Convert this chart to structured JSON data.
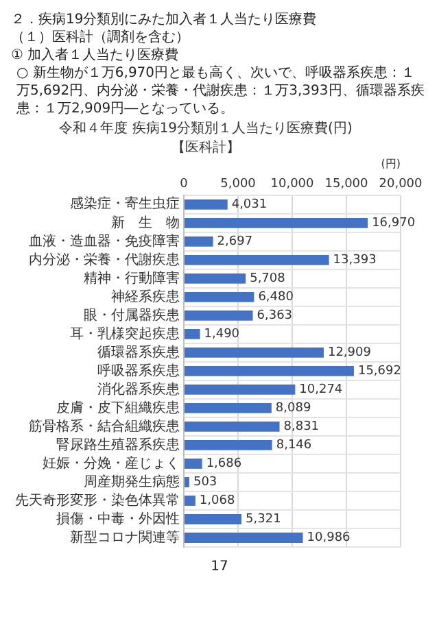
{
  "chart_data": {
    "type": "bar",
    "orientation": "horizontal",
    "title": "令和４年度 疾病19分類別１人当たり医療費(円)",
    "subtitle": "【医科計】",
    "xlabel": "(円)",
    "annotations": [
      "２．疾病19分類別にみた加入者１人当たり医療費",
      "（１）医科計（調剤を含む）",
      "① 加入者１人当たり医療費",
      "○ 新生物が１万6,970円と最も高く、次いで、呼吸器系疾患：１万5,692円、内分泌・栄養・代謝疾患：１万3,393円、循環器系疾患：１万2,909円―となっている。",
      "17"
    ],
    "categories": [
      "感染症・寄生虫症",
      "新　生　物",
      "血液・造血器・免疫障害",
      "内分泌・栄養・代謝疾患",
      "精神・行動障害",
      "神経系疾患",
      "眼・付属器疾患",
      "耳・乳様突起疾患",
      "循環器系疾患",
      "呼吸器系疾患",
      "消化器系疾患",
      "皮膚・皮下組織疾患",
      "筋骨格系・結合組織疾患",
      "腎尿路生殖器系疾患",
      "妊娠・分娩・産じょく",
      "周産期発生病態",
      "先天奇形変形・染色体異常",
      "損傷・中毒・外因性",
      "新型コロナ関連等"
    ],
    "values": [
      4031,
      16970,
      2697,
      13393,
      5708,
      6480,
      6363,
      1490,
      12909,
      15692,
      10274,
      8089,
      8831,
      8146,
      1686,
      503,
      1068,
      5321,
      10986
    ],
    "value_labels": [
      "4,031",
      "16,970",
      "2,697",
      "13,393",
      "5,708",
      "6,480",
      "6,363",
      "1,490",
      "12,909",
      "15,692",
      "10,274",
      "8,089",
      "8,831",
      "8,146",
      "1,686",
      "503",
      "1,068",
      "5,321",
      "10,986"
    ],
    "color": "#4472c4",
    "xlim": [
      0,
      20000
    ],
    "xticks": [
      0,
      {
        "value": 5000,
        "label": "5,000"
      },
      {
        "value": 10000,
        "label": "10,000"
      },
      {
        "value": 15000,
        "label": "15,000"
      },
      {
        "value": 20000,
        "label": "20,000"
      }
    ],
    "grid": true
  }
}
